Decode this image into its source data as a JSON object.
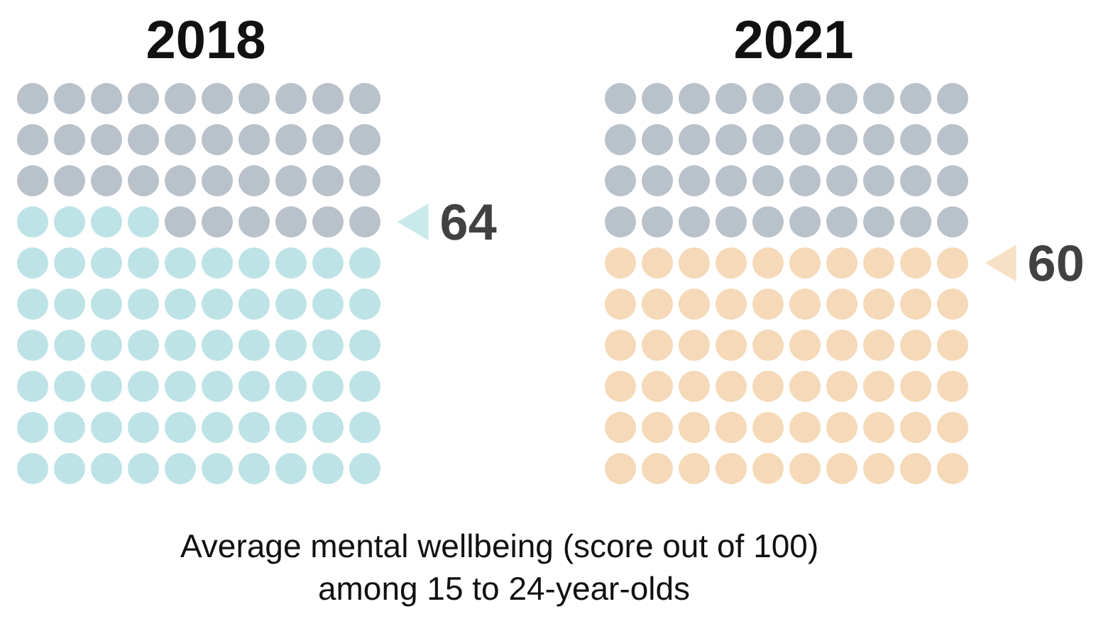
{
  "chart_data": {
    "type": "other",
    "categories": [
      "2018",
      "2021"
    ],
    "values": [
      64,
      60
    ],
    "colors": [
      "#bde3e6",
      "#f5d9b8"
    ],
    "value_labels": [
      "64",
      "60"
    ],
    "annotations": [
      "Average mental wellbeing (score out of 100) among 15 to 24-year-olds"
    ]
  }
}
